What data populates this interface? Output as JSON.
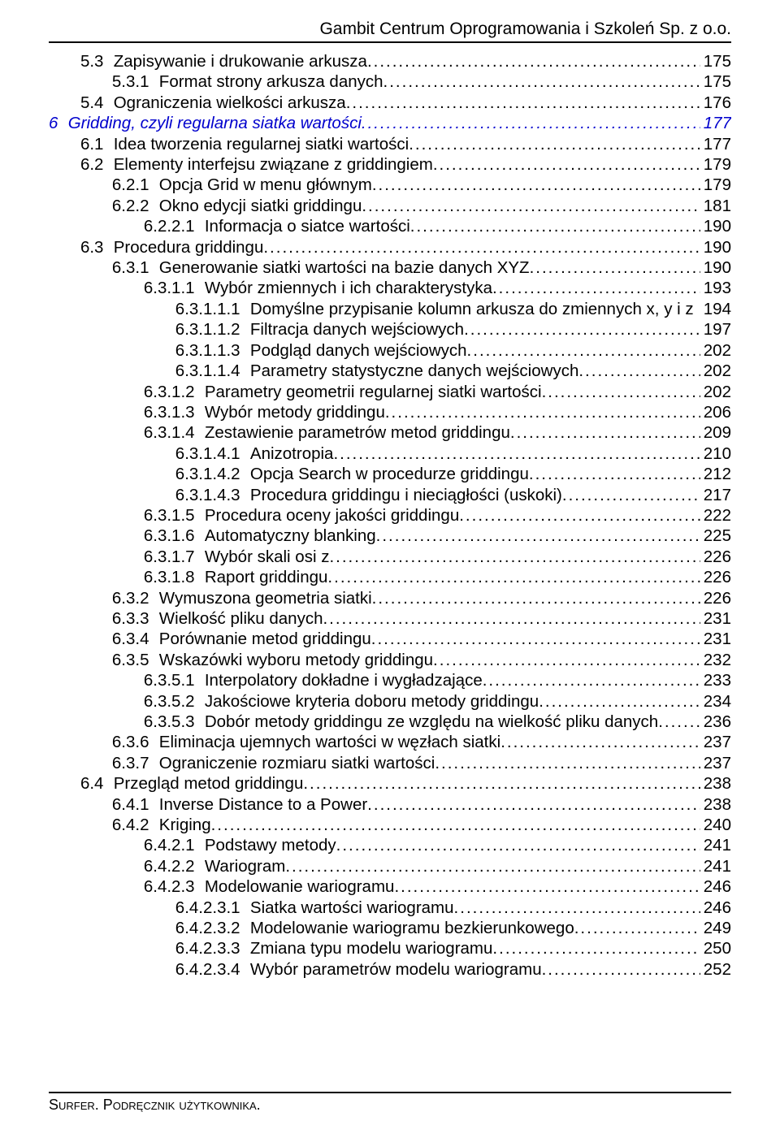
{
  "header": {
    "title": "Gambit Centrum Oprogramowania i Szkoleń Sp. z o.o."
  },
  "footer": {
    "text": "Surfer. Podręcznik użytkownika."
  },
  "style": {
    "chapter_color": "#0000cd",
    "text_color": "#000000",
    "background": "#ffffff",
    "font_family": "Arial",
    "base_fontsize_pt": 15,
    "line_height": 1.24
  },
  "indent_em": 1.9,
  "toc": [
    {
      "lvl": 1,
      "num": "5.3",
      "label": "Zapisywanie i drukowanie arkusza",
      "page": "175"
    },
    {
      "lvl": 2,
      "num": "5.3.1",
      "label": "Format strony arkusza danych",
      "page": "175"
    },
    {
      "lvl": 1,
      "num": "5.4",
      "label": "Ograniczenia wielkości arkusza",
      "page": "176"
    },
    {
      "lvl": 0,
      "num": "6",
      "label": "Gridding, czyli regularna siatka wartości",
      "page": "177",
      "chapter": true,
      "wide_page": true
    },
    {
      "lvl": 1,
      "num": "6.1",
      "label": "Idea tworzenia regularnej siatki wartości",
      "page": "177"
    },
    {
      "lvl": 1,
      "num": "6.2",
      "label": "Elementy interfejsu związane z griddingiem",
      "page": "179"
    },
    {
      "lvl": 2,
      "num": "6.2.1",
      "label": "Opcja Grid w menu głównym",
      "page": "179"
    },
    {
      "lvl": 2,
      "num": "6.2.2",
      "label": "Okno edycji siatki griddingu",
      "page": "181"
    },
    {
      "lvl": 3,
      "num": "6.2.2.1",
      "label": "Informacja o siatce wartości",
      "page": "190"
    },
    {
      "lvl": 1,
      "num": "6.3",
      "label": "Procedura griddingu",
      "page": "190"
    },
    {
      "lvl": 2,
      "num": "6.3.1",
      "label": "Generowanie siatki wartości na bazie danych XYZ",
      "page": "190"
    },
    {
      "lvl": 3,
      "num": "6.3.1.1",
      "label": "Wybór zmiennych i ich charakterystyka",
      "page": "193"
    },
    {
      "lvl": 4,
      "num": "6.3.1.1.1",
      "label": "Domyślne przypisanie kolumn arkusza do zmiennych x, y i z",
      "page": "194",
      "no_leader": true
    },
    {
      "lvl": 4,
      "num": "6.3.1.1.2",
      "label": "Filtracja danych wejściowych",
      "page": "197"
    },
    {
      "lvl": 4,
      "num": "6.3.1.1.3",
      "label": "Podgląd danych wejściowych",
      "page": "202"
    },
    {
      "lvl": 4,
      "num": "6.3.1.1.4",
      "label": "Parametry statystyczne danych wejściowych",
      "page": "202"
    },
    {
      "lvl": 3,
      "num": "6.3.1.2",
      "label": "Parametry geometrii regularnej siatki wartości",
      "page": "202"
    },
    {
      "lvl": 3,
      "num": "6.3.1.3",
      "label": "Wybór metody griddingu",
      "page": "206"
    },
    {
      "lvl": 3,
      "num": "6.3.1.4",
      "label": "Zestawienie parametrów metod griddingu",
      "page": "209"
    },
    {
      "lvl": 4,
      "num": "6.3.1.4.1",
      "label": "Anizotropia",
      "page": "210"
    },
    {
      "lvl": 4,
      "num": "6.3.1.4.2",
      "label": "Opcja Search w procedurze griddingu",
      "page": "212"
    },
    {
      "lvl": 4,
      "num": "6.3.1.4.3",
      "label": "Procedura griddingu i nieciągłości (uskoki)",
      "page": "217"
    },
    {
      "lvl": 3,
      "num": "6.3.1.5",
      "label": "Procedura oceny jakości griddingu",
      "page": "222"
    },
    {
      "lvl": 3,
      "num": "6.3.1.6",
      "label": "Automatyczny blanking",
      "page": "225"
    },
    {
      "lvl": 3,
      "num": "6.3.1.7",
      "label": "Wybór skali osi z",
      "page": "226"
    },
    {
      "lvl": 3,
      "num": "6.3.1.8",
      "label": "Raport griddingu",
      "page": "226"
    },
    {
      "lvl": 2,
      "num": "6.3.2",
      "label": "Wymuszona geometria siatki",
      "page": "226"
    },
    {
      "lvl": 2,
      "num": "6.3.3",
      "label": "Wielkość pliku danych",
      "page": "231"
    },
    {
      "lvl": 2,
      "num": "6.3.4",
      "label": "Porównanie metod griddingu",
      "page": "231"
    },
    {
      "lvl": 2,
      "num": "6.3.5",
      "label": "Wskazówki wyboru metody griddingu",
      "page": "232"
    },
    {
      "lvl": 3,
      "num": "6.3.5.1",
      "label": "Interpolatory dokładne i wygładzające",
      "page": "233"
    },
    {
      "lvl": 3,
      "num": "6.3.5.2",
      "label": "Jakościowe kryteria doboru metody griddingu",
      "page": "234"
    },
    {
      "lvl": 3,
      "num": "6.3.5.3",
      "label": "Dobór metody griddingu ze względu na wielkość pliku danych",
      "page": "236"
    },
    {
      "lvl": 2,
      "num": "6.3.6",
      "label": "Eliminacja ujemnych wartości w węzłach siatki",
      "page": "237"
    },
    {
      "lvl": 2,
      "num": "6.3.7",
      "label": "Ograniczenie rozmiaru siatki wartości",
      "page": "237"
    },
    {
      "lvl": 1,
      "num": "6.4",
      "label": "Przegląd metod griddingu",
      "page": "238"
    },
    {
      "lvl": 2,
      "num": "6.4.1",
      "label": "Inverse Distance to a Power",
      "page": "238"
    },
    {
      "lvl": 2,
      "num": "6.4.2",
      "label": "Kriging",
      "page": "240"
    },
    {
      "lvl": 3,
      "num": "6.4.2.1",
      "label": "Podstawy metody",
      "page": "241"
    },
    {
      "lvl": 3,
      "num": "6.4.2.2",
      "label": "Wariogram",
      "page": "241"
    },
    {
      "lvl": 3,
      "num": "6.4.2.3",
      "label": "Modelowanie wariogramu",
      "page": "246"
    },
    {
      "lvl": 4,
      "num": "6.4.2.3.1",
      "label": "Siatka wartości wariogramu",
      "page": "246"
    },
    {
      "lvl": 4,
      "num": "6.4.2.3.2",
      "label": "Modelowanie wariogramu bezkierunkowego",
      "page": "249"
    },
    {
      "lvl": 4,
      "num": "6.4.2.3.3",
      "label": "Zmiana typu modelu wariogramu",
      "page": "250"
    },
    {
      "lvl": 4,
      "num": "6.4.2.3.4",
      "label": "Wybór parametrów modelu wariogramu",
      "page": "252"
    }
  ]
}
